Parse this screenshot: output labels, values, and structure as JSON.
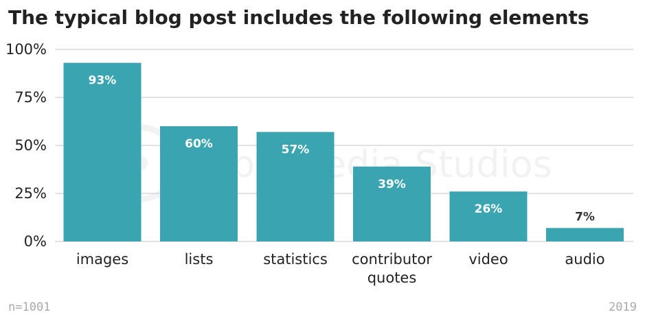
{
  "chart_data": {
    "type": "bar",
    "title": "The typical blog post includes the following elements",
    "categories": [
      "images",
      "lists",
      "statistics",
      "contributor quotes",
      "video",
      "audio"
    ],
    "values": [
      93,
      60,
      57,
      39,
      26,
      7
    ],
    "data_labels": [
      "93%",
      "60%",
      "57%",
      "39%",
      "26%",
      "7%"
    ],
    "yticks": [
      "0%",
      "25%",
      "50%",
      "75%",
      "100%"
    ],
    "ylim": [
      0,
      100
    ],
    "xlabel": "",
    "ylabel": "",
    "grid": true,
    "bar_color": "#3aa5b1",
    "label_color_inside": "#ffffff",
    "label_color_outside": "#333333"
  },
  "watermark": "Orbit Media Studios",
  "footer": {
    "sample": "n=1001",
    "year": "2019"
  }
}
